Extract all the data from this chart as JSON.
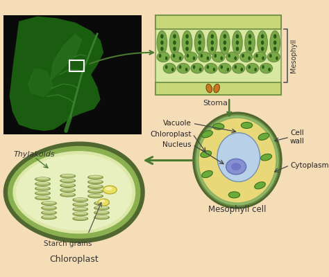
{
  "bg": "#f5ddb8",
  "colors": {
    "dark_green": "#6b8c42",
    "med_green": "#8fad60",
    "light_green": "#b8cc80",
    "pale_green": "#d8e8a8",
    "very_pale_green": "#e8f0c8",
    "cell_wall_green": "#8db868",
    "cytoplasm_yellow": "#e8d878",
    "vacuole_blue": "#aac8e0",
    "nucleus_blue": "#8890d0",
    "nucleus_dark": "#6070b8",
    "starch_yellow": "#e8e060",
    "stoma_orange": "#c87820",
    "arrow_green": "#4a7a30",
    "epidermis": "#b0cc70",
    "black_photo": "#0a0a0a",
    "leaf_dark": "#1a5010",
    "leaf_mid": "#2a7020",
    "thylakoid_fill": "#b0c070",
    "thylakoid_edge": "#7a9040",
    "inner_stroma": "#dce8b0",
    "chloroplast_outer": "#7a9850",
    "chloroplast_border": "#506830"
  },
  "labels": {
    "stoma": "Stoma",
    "mesophyll": "Mesophyll",
    "thylakoids": "Thylakoids",
    "starch_grains": "Starch grains",
    "chloroplast": "Chloroplast",
    "vacuole": "Vacuole",
    "chloroplast_cell": "Chloroplast",
    "nucleus": "Nucleus",
    "cell_wall": "Cell\nwall",
    "cytoplasm": "Cytoplasm",
    "mesophyll_cell": "Mesophyll cell"
  }
}
